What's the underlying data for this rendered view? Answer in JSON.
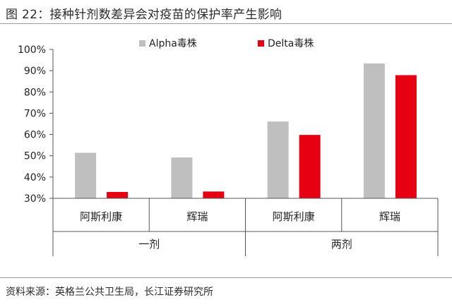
{
  "title": "图 22：接种针剂数差异会对疫苗的保护率产生影响",
  "source": "资料来源：英格兰公共卫生局，长江证券研究所",
  "colors": {
    "alpha": "#bfbfbf",
    "delta": "#e60012"
  },
  "chart_data": {
    "type": "bar",
    "title": "图 22：接种针剂数差异会对疫苗的保护率产生影响",
    "ylim": [
      30,
      100
    ],
    "y_ticks": [
      "30%",
      "40%",
      "50%",
      "60%",
      "70%",
      "80%",
      "90%",
      "100%"
    ],
    "groups": [
      {
        "label": "一剂",
        "categories": [
          "阿斯利康",
          "辉瑞"
        ]
      },
      {
        "label": "两剂",
        "categories": [
          "阿斯利康",
          "辉瑞"
        ]
      }
    ],
    "categories": [
      "阿斯利康",
      "辉瑞",
      "阿斯利康",
      "辉瑞"
    ],
    "series": [
      {
        "name": "Alpha毒株",
        "values": [
          51.4,
          49.2,
          66.1,
          93.4
        ]
      },
      {
        "name": "Delta毒株",
        "values": [
          33.0,
          33.2,
          59.8,
          87.9
        ]
      }
    ],
    "legend": "top"
  }
}
